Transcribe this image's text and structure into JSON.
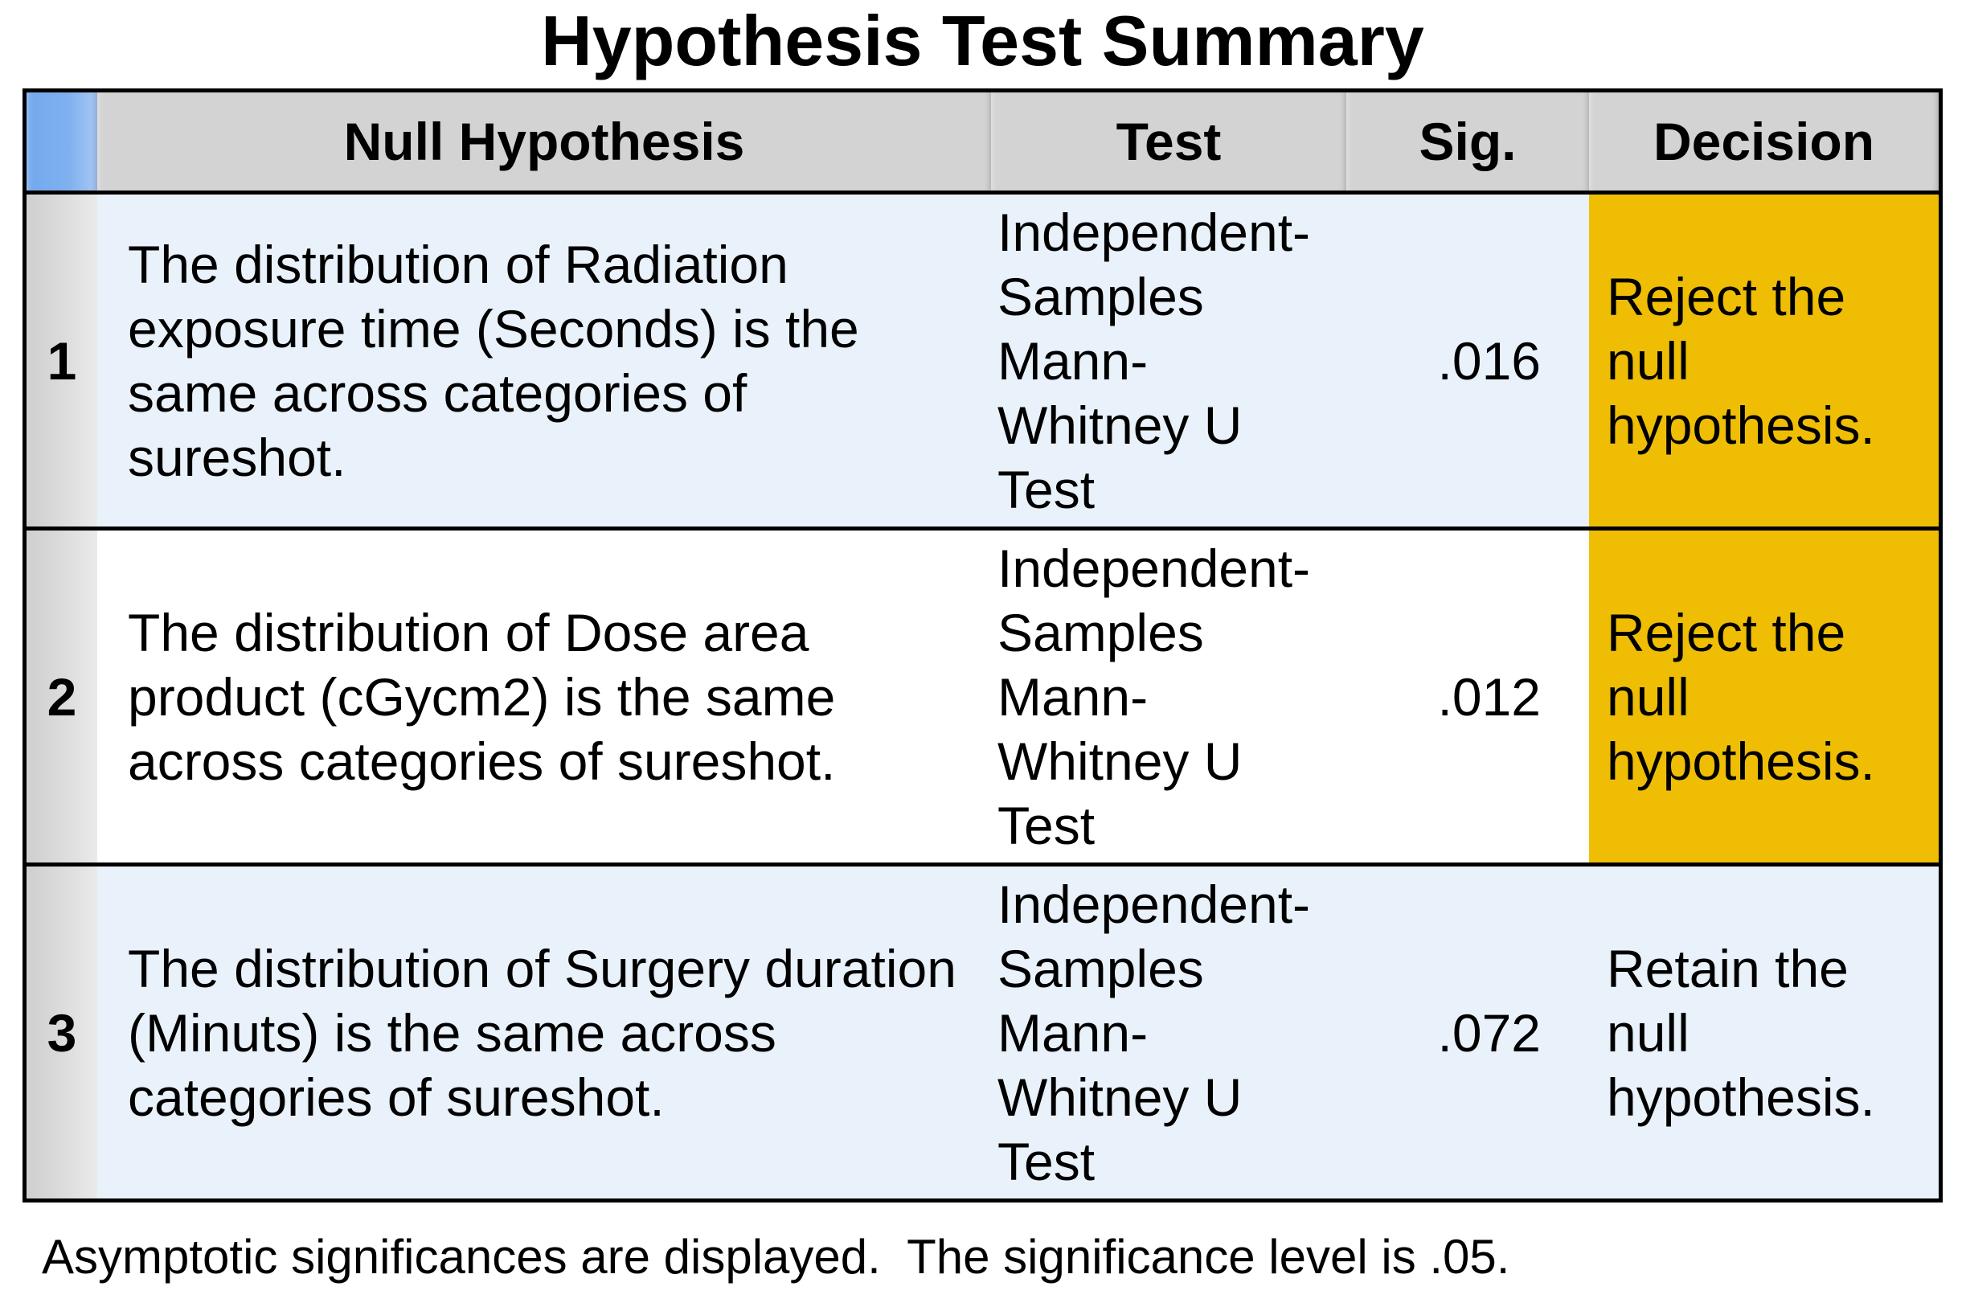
{
  "title": "Hypothesis Test Summary",
  "table": {
    "columns": {
      "null_hypothesis": "Null Hypothesis",
      "test": "Test",
      "sig": "Sig.",
      "decision": "Decision"
    },
    "rows": [
      {
        "num": "1",
        "null_hypothesis": "The distribution of Radiation exposure time (Seconds) is the same across categories of sureshot.",
        "test": "Independent-Samples Mann-Whitney U Test",
        "sig": ".016",
        "decision": "Reject the null hypothesis.",
        "decision_highlight": true
      },
      {
        "num": "2",
        "null_hypothesis": "The distribution of Dose area product (cGycm2) is the same across categories of sureshot.",
        "test": "Independent-Samples Mann-Whitney U Test",
        "sig": ".012",
        "decision": "Reject the null hypothesis.",
        "decision_highlight": true
      },
      {
        "num": "3",
        "null_hypothesis": "The distribution of Surgery duration (Minuts) is the same across categories of sureshot.",
        "test": "Independent-Samples Mann-Whitney U Test",
        "sig": ".072",
        "decision": "Retain the null hypothesis.",
        "decision_highlight": false
      }
    ]
  },
  "footnote": "Asymptotic significances are displayed.  The significance level is .05.",
  "colors": {
    "header_bg": "#d3d3d3",
    "corner_bg": "#7fb1ef",
    "row_bg": "#ffffff",
    "row_alt_bg": "#e9f1fa",
    "num_col_bg": "#dadada",
    "highlight_bg": "#efbe04",
    "border": "#000000",
    "text": "#000000"
  }
}
